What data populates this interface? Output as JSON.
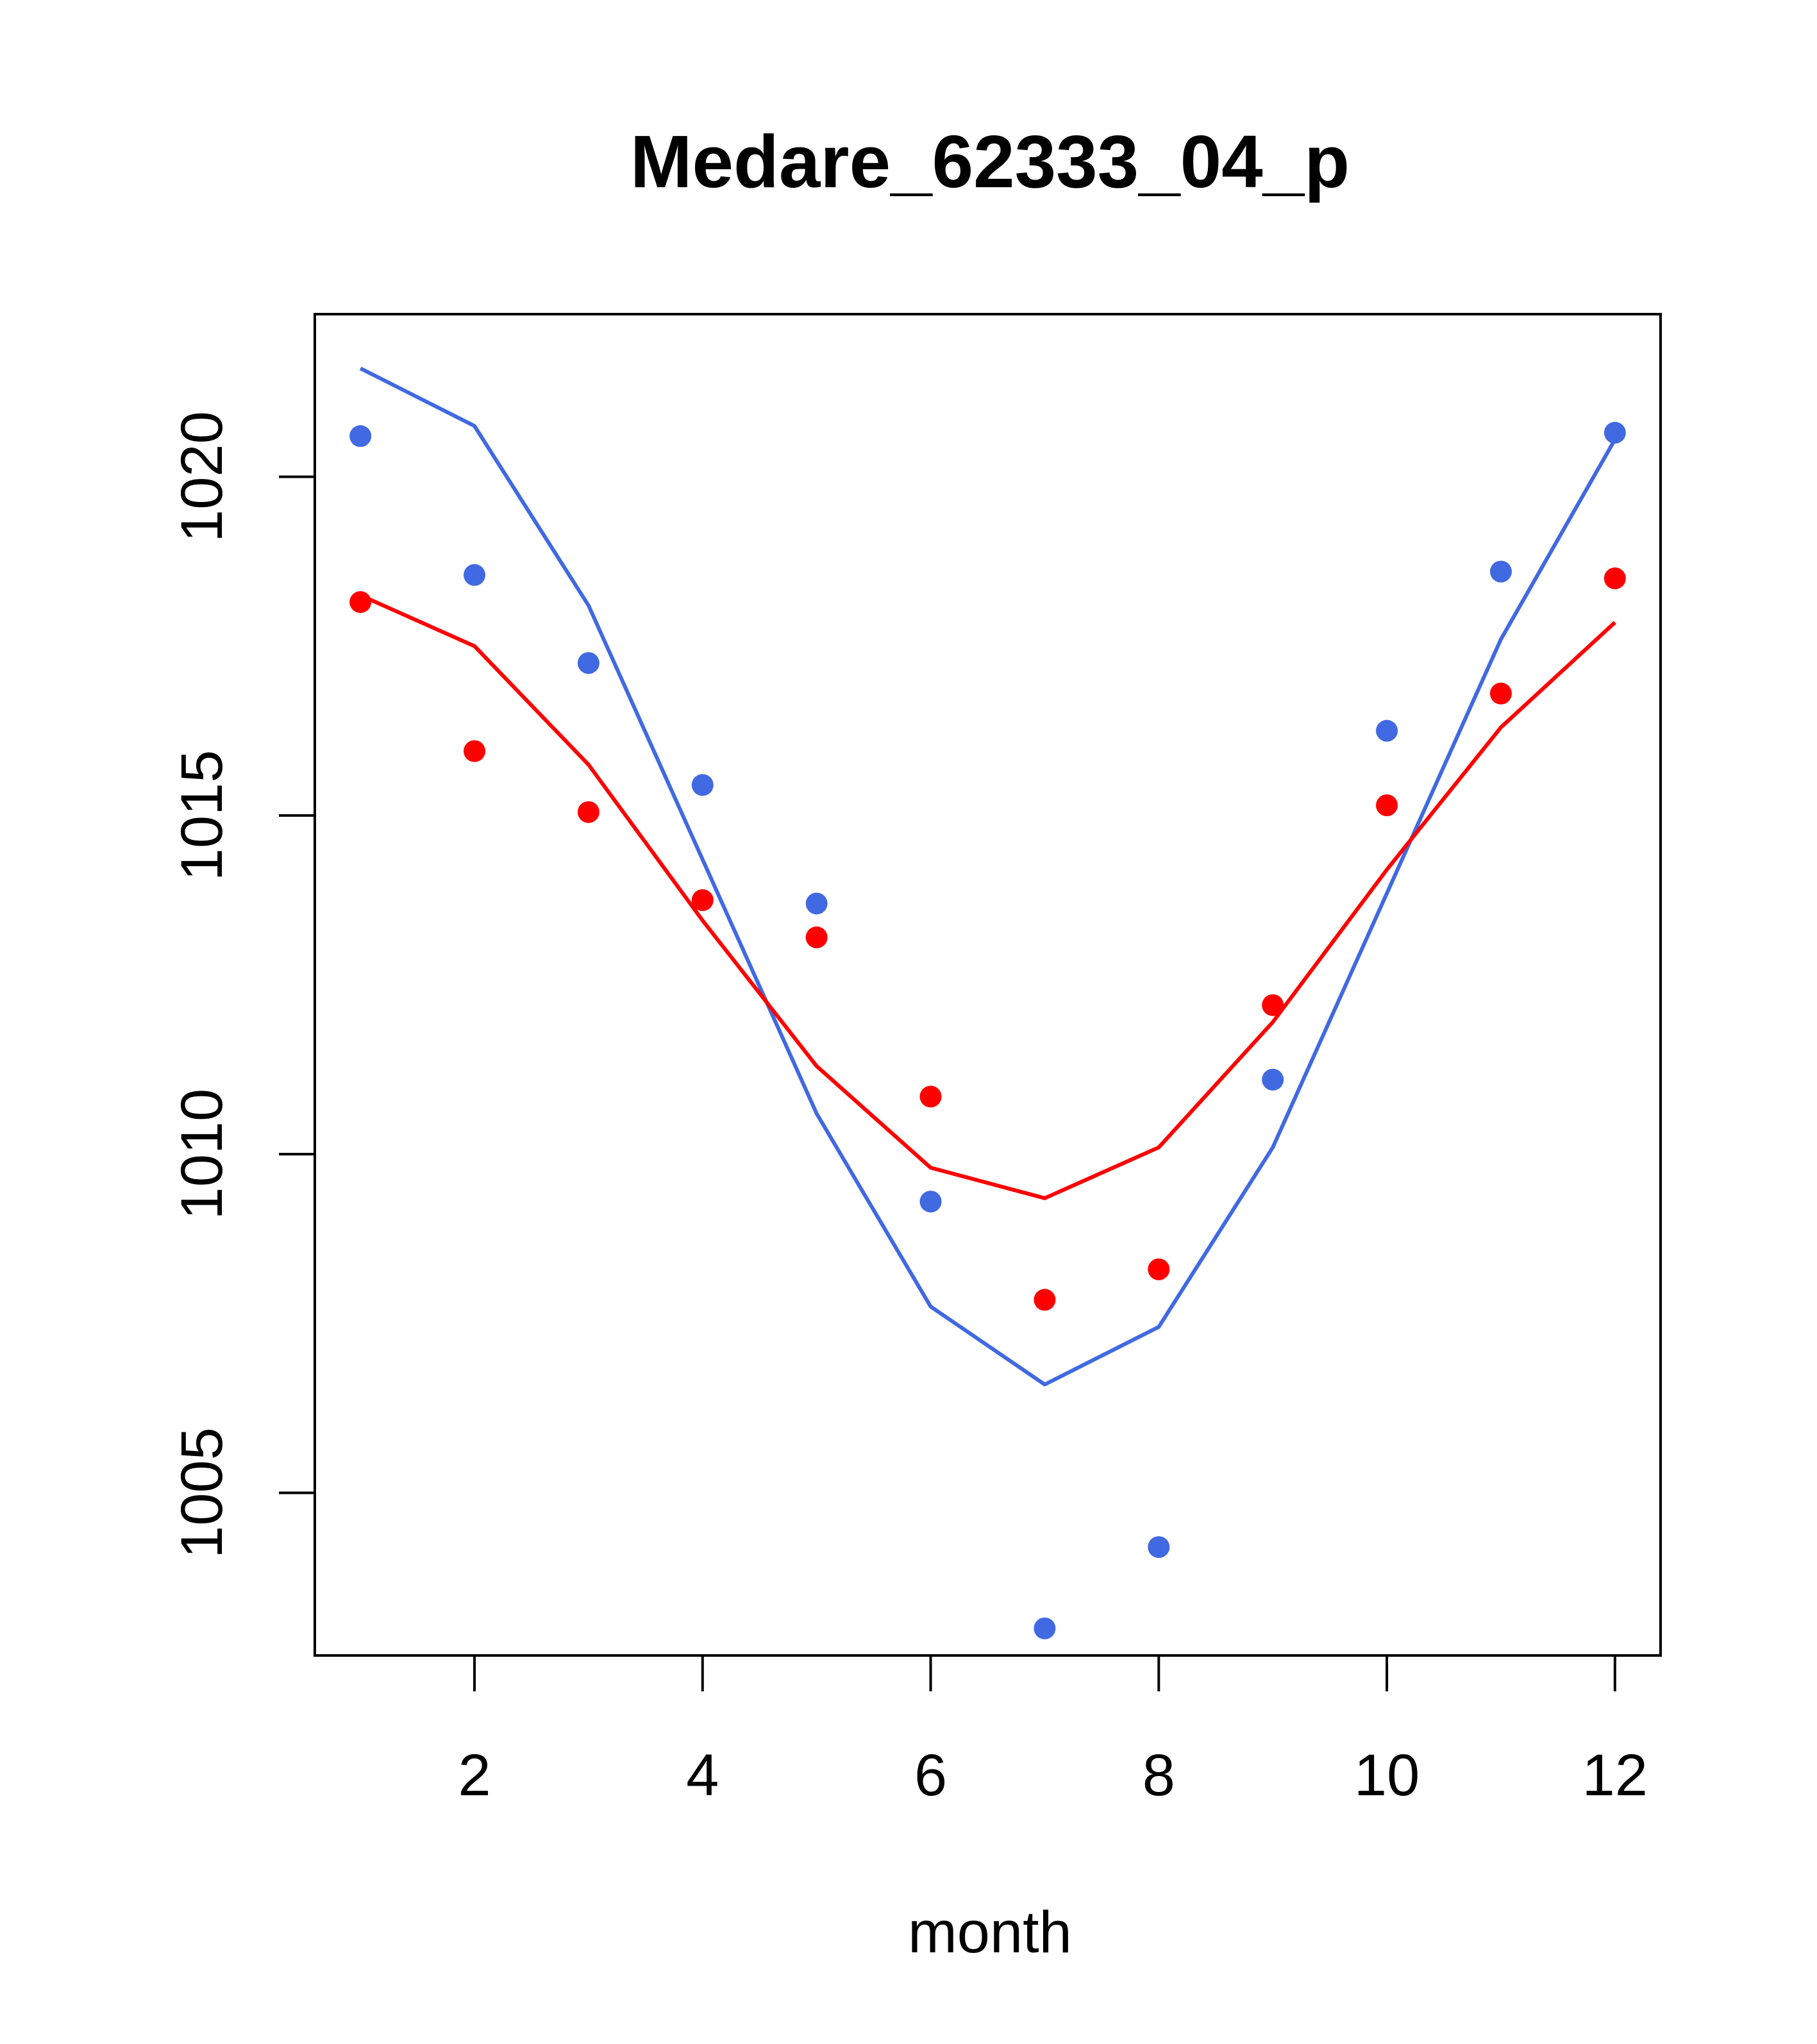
{
  "chart_data": {
    "type": "line",
    "title": "Medare_62333_04_p",
    "xlabel": "month",
    "ylabel": "",
    "x": [
      1,
      2,
      3,
      4,
      5,
      6,
      7,
      8,
      9,
      10,
      11,
      12
    ],
    "xlim": [
      0.6,
      12.4
    ],
    "ylim": [
      1002.6,
      1022.4
    ],
    "xticks": [
      2,
      4,
      6,
      8,
      10,
      12
    ],
    "xtick_labels": [
      "2",
      "4",
      "6",
      "8",
      "10",
      "12"
    ],
    "yticks": [
      1005,
      1010,
      1015,
      1020
    ],
    "ytick_labels": [
      "1005",
      "1010",
      "1015",
      "1020"
    ],
    "grid": false,
    "legend": "none",
    "series": [
      {
        "kind": "points",
        "color": "#4169E1",
        "values": [
          1020.6,
          1018.55,
          1017.25,
          1015.45,
          1013.7,
          1009.3,
          1003.0,
          1004.2,
          1011.1,
          1016.25,
          1018.6,
          1020.65
        ]
      },
      {
        "kind": "line",
        "color": "#4169E1",
        "values": [
          1021.6,
          1020.75,
          1018.1,
          1014.35,
          1010.6,
          1007.75,
          1006.6,
          1007.45,
          1010.1,
          1013.85,
          1017.6,
          1020.55
        ]
      },
      {
        "kind": "points",
        "color": "#FF0000",
        "values": [
          1018.15,
          1015.95,
          1015.05,
          1013.75,
          1013.2,
          1010.85,
          1007.85,
          1008.3,
          1012.2,
          1015.15,
          1016.8,
          1018.5
        ]
      },
      {
        "kind": "line",
        "color": "#FF0000",
        "values": [
          1018.25,
          1017.5,
          1015.75,
          1013.45,
          1011.3,
          1009.8,
          1009.35,
          1010.1,
          1011.95,
          1014.2,
          1016.3,
          1017.85
        ]
      }
    ]
  }
}
